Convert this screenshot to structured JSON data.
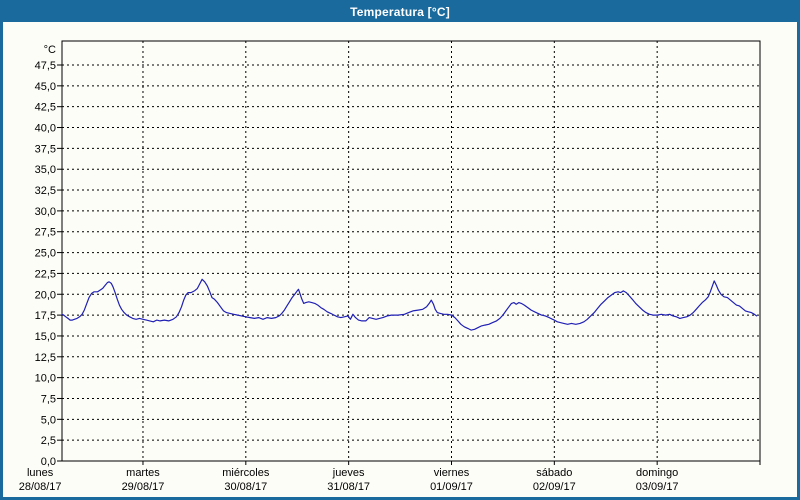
{
  "window": {
    "title": "Temperatura [°C]"
  },
  "colors": {
    "titlebar_bg": "#1A6A9E",
    "titlebar_text": "#FFFFFF",
    "window_border": "#1A6A9E",
    "content_bg": "#FCFDF7",
    "series_line": "#1F1FB4",
    "grid": "#000000",
    "axis_text": "#000000"
  },
  "chart_data": {
    "type": "line",
    "title": "Temperatura [°C]",
    "legend": "none",
    "grid": {
      "style": "dashed",
      "horizontal_step_degC": 2.5,
      "vertical_step": "1 day"
    },
    "y_axis": {
      "unit_label": "°C",
      "ylim": [
        0,
        50.4
      ],
      "tick_min": 0,
      "tick_max": 47.5,
      "tick_step": 2.5,
      "tick_labels_bottom_to_top": [
        "0,0",
        "2,5",
        "5,0",
        "7,5",
        "10,0",
        "12,5",
        "15,0",
        "17,5",
        "20,0",
        "22,5",
        "25,0",
        "27,5",
        "30,0",
        "32,5",
        "35,0",
        "37,5",
        "40,0",
        "42,5",
        "45,0",
        "47,5"
      ]
    },
    "x_axis": {
      "days_total": 7,
      "visible_hours_range": [
        5.1,
        168
      ],
      "categories": [
        {
          "day": "lunes",
          "date": "28/08/17"
        },
        {
          "day": "martes",
          "date": "29/08/17"
        },
        {
          "day": "miércoles",
          "date": "30/08/17"
        },
        {
          "day": "jueves",
          "date": "31/08/17"
        },
        {
          "day": "viernes",
          "date": "01/09/17"
        },
        {
          "day": "sábado",
          "date": "02/09/17"
        },
        {
          "day": "domingo",
          "date": "03/09/17"
        }
      ]
    },
    "series": [
      {
        "name": "Temperatura",
        "unit": "°C",
        "color": "#1F1FB4",
        "points_hour_degC": [
          [
            5.1,
            17.6
          ],
          [
            5.5,
            17.5
          ],
          [
            6,
            17.3
          ],
          [
            6.5,
            17.1
          ],
          [
            7,
            16.9
          ],
          [
            7.5,
            16.9
          ],
          [
            8,
            17.0
          ],
          [
            8.6,
            17.1
          ],
          [
            9.2,
            17.3
          ],
          [
            9.8,
            17.6
          ],
          [
            10.3,
            18.1
          ],
          [
            10.9,
            18.9
          ],
          [
            11.4,
            19.6
          ],
          [
            12,
            20.1
          ],
          [
            12.6,
            20.3
          ],
          [
            13.4,
            20.3
          ],
          [
            14,
            20.5
          ],
          [
            14.6,
            20.7
          ],
          [
            15.2,
            21.1
          ],
          [
            15.7,
            21.4
          ],
          [
            16.1,
            21.5
          ],
          [
            16.6,
            21.3
          ],
          [
            17,
            20.9
          ],
          [
            17.5,
            20.2
          ],
          [
            18,
            19.4
          ],
          [
            18.5,
            18.7
          ],
          [
            19,
            18.2
          ],
          [
            19.6,
            17.8
          ],
          [
            20.2,
            17.5
          ],
          [
            20.9,
            17.3
          ],
          [
            21.6,
            17.1
          ],
          [
            22.4,
            17.0
          ],
          [
            23.2,
            17.1
          ],
          [
            24,
            17.0
          ],
          [
            24.8,
            16.9
          ],
          [
            25.6,
            16.8
          ],
          [
            26.4,
            16.7
          ],
          [
            27.2,
            16.9
          ],
          [
            28,
            16.8
          ],
          [
            29,
            16.9
          ],
          [
            30,
            16.8
          ],
          [
            31,
            17.0
          ],
          [
            31.8,
            17.3
          ],
          [
            32.4,
            17.8
          ],
          [
            33,
            18.5
          ],
          [
            33.5,
            19.3
          ],
          [
            34,
            19.9
          ],
          [
            34.5,
            20.2
          ],
          [
            35.2,
            20.2
          ],
          [
            36,
            20.4
          ],
          [
            36.7,
            20.7
          ],
          [
            37.3,
            21.3
          ],
          [
            37.8,
            21.8
          ],
          [
            38.4,
            21.5
          ],
          [
            39,
            21.0
          ],
          [
            39.6,
            20.3
          ],
          [
            40.1,
            19.6
          ],
          [
            40.7,
            19.4
          ],
          [
            41.4,
            19.0
          ],
          [
            42.1,
            18.5
          ],
          [
            42.8,
            18.0
          ],
          [
            43.5,
            17.8
          ],
          [
            44.3,
            17.7
          ],
          [
            45.2,
            17.6
          ],
          [
            46.1,
            17.5
          ],
          [
            47,
            17.4
          ],
          [
            48,
            17.3
          ],
          [
            49,
            17.2
          ],
          [
            50,
            17.1
          ],
          [
            51,
            17.2
          ],
          [
            52,
            17.0
          ],
          [
            53,
            17.2
          ],
          [
            54,
            17.1
          ],
          [
            55,
            17.2
          ],
          [
            55.8,
            17.4
          ],
          [
            56.4,
            17.7
          ],
          [
            57,
            18.1
          ],
          [
            57.6,
            18.6
          ],
          [
            58.2,
            19.1
          ],
          [
            58.8,
            19.6
          ],
          [
            59.4,
            20.0
          ],
          [
            60,
            20.4
          ],
          [
            60.3,
            20.6
          ],
          [
            60.7,
            20.0
          ],
          [
            61.1,
            19.4
          ],
          [
            61.5,
            18.9
          ],
          [
            62,
            19.0
          ],
          [
            62.7,
            19.1
          ],
          [
            63.4,
            19.0
          ],
          [
            64.1,
            18.9
          ],
          [
            64.8,
            18.7
          ],
          [
            65.5,
            18.4
          ],
          [
            66.2,
            18.2
          ],
          [
            67,
            17.9
          ],
          [
            67.8,
            17.7
          ],
          [
            68.6,
            17.5
          ],
          [
            69.4,
            17.3
          ],
          [
            70.2,
            17.2
          ],
          [
            71,
            17.3
          ],
          [
            71.8,
            17.4
          ],
          [
            72.4,
            17.0
          ],
          [
            73,
            17.6
          ],
          [
            73.6,
            17.2
          ],
          [
            74.3,
            16.9
          ],
          [
            75.1,
            16.8
          ],
          [
            76,
            16.8
          ],
          [
            76.8,
            17.2
          ],
          [
            77.6,
            17.1
          ],
          [
            78.4,
            17.0
          ],
          [
            79.2,
            17.1
          ],
          [
            80,
            17.2
          ],
          [
            81,
            17.4
          ],
          [
            82,
            17.5
          ],
          [
            83.5,
            17.5
          ],
          [
            85,
            17.6
          ],
          [
            86,
            17.8
          ],
          [
            87,
            18.0
          ],
          [
            88.2,
            18.1
          ],
          [
            89.3,
            18.2
          ],
          [
            90.2,
            18.5
          ],
          [
            90.8,
            18.9
          ],
          [
            91.3,
            19.3
          ],
          [
            91.8,
            18.8
          ],
          [
            92.2,
            18.2
          ],
          [
            92.7,
            17.8
          ],
          [
            93.4,
            17.7
          ],
          [
            94.2,
            17.6
          ],
          [
            95.1,
            17.6
          ],
          [
            96,
            17.5
          ],
          [
            96.8,
            17.2
          ],
          [
            97.5,
            16.8
          ],
          [
            98.2,
            16.4
          ],
          [
            99,
            16.1
          ],
          [
            99.8,
            15.9
          ],
          [
            100.6,
            15.7
          ],
          [
            101.4,
            15.8
          ],
          [
            102.2,
            16.0
          ],
          [
            103,
            16.2
          ],
          [
            103.8,
            16.3
          ],
          [
            104.7,
            16.4
          ],
          [
            105.6,
            16.6
          ],
          [
            106.5,
            16.8
          ],
          [
            107.3,
            17.1
          ],
          [
            108,
            17.5
          ],
          [
            108.7,
            18.0
          ],
          [
            109.4,
            18.5
          ],
          [
            110,
            18.9
          ],
          [
            110.6,
            19.0
          ],
          [
            111.1,
            18.8
          ],
          [
            111.7,
            19.0
          ],
          [
            112.3,
            18.9
          ],
          [
            113,
            18.7
          ],
          [
            113.8,
            18.4
          ],
          [
            114.6,
            18.1
          ],
          [
            115.4,
            17.9
          ],
          [
            116.2,
            17.7
          ],
          [
            117,
            17.5
          ],
          [
            117.9,
            17.4
          ],
          [
            118.8,
            17.2
          ],
          [
            119.6,
            17.0
          ],
          [
            120,
            16.9
          ],
          [
            120.7,
            16.7
          ],
          [
            121.4,
            16.6
          ],
          [
            122.2,
            16.5
          ],
          [
            123.1,
            16.4
          ],
          [
            124,
            16.5
          ],
          [
            125,
            16.4
          ],
          [
            126,
            16.5
          ],
          [
            126.9,
            16.7
          ],
          [
            127.7,
            17.0
          ],
          [
            128.5,
            17.4
          ],
          [
            129.3,
            17.8
          ],
          [
            130.1,
            18.3
          ],
          [
            130.9,
            18.8
          ],
          [
            131.7,
            19.2
          ],
          [
            132.5,
            19.6
          ],
          [
            133.3,
            19.9
          ],
          [
            134.1,
            20.2
          ],
          [
            134.9,
            20.3
          ],
          [
            135.5,
            20.2
          ],
          [
            136.1,
            20.4
          ],
          [
            136.8,
            20.2
          ],
          [
            137.5,
            19.8
          ],
          [
            138.2,
            19.4
          ],
          [
            139,
            18.9
          ],
          [
            139.8,
            18.5
          ],
          [
            140.6,
            18.1
          ],
          [
            141.4,
            17.8
          ],
          [
            142.2,
            17.6
          ],
          [
            143.1,
            17.5
          ],
          [
            144,
            17.5
          ],
          [
            145,
            17.6
          ],
          [
            146,
            17.5
          ],
          [
            146.9,
            17.6
          ],
          [
            147.7,
            17.4
          ],
          [
            148.5,
            17.3
          ],
          [
            149.3,
            17.1
          ],
          [
            150.1,
            17.2
          ],
          [
            150.9,
            17.3
          ],
          [
            151.7,
            17.5
          ],
          [
            152.4,
            17.8
          ],
          [
            153.1,
            18.2
          ],
          [
            153.8,
            18.6
          ],
          [
            154.5,
            19.0
          ],
          [
            155.2,
            19.3
          ],
          [
            155.9,
            19.7
          ],
          [
            156.4,
            20.3
          ],
          [
            156.9,
            21.0
          ],
          [
            157.3,
            21.6
          ],
          [
            157.8,
            21.1
          ],
          [
            158.3,
            20.5
          ],
          [
            158.9,
            20.0
          ],
          [
            159.6,
            19.7
          ],
          [
            160.4,
            19.6
          ],
          [
            161.1,
            19.3
          ],
          [
            161.8,
            19.0
          ],
          [
            162.5,
            18.7
          ],
          [
            163.2,
            18.6
          ],
          [
            163.9,
            18.3
          ],
          [
            164.6,
            18.0
          ],
          [
            165.3,
            17.9
          ],
          [
            166,
            17.8
          ],
          [
            166.7,
            17.6
          ],
          [
            167.2,
            17.4
          ]
        ]
      }
    ]
  }
}
